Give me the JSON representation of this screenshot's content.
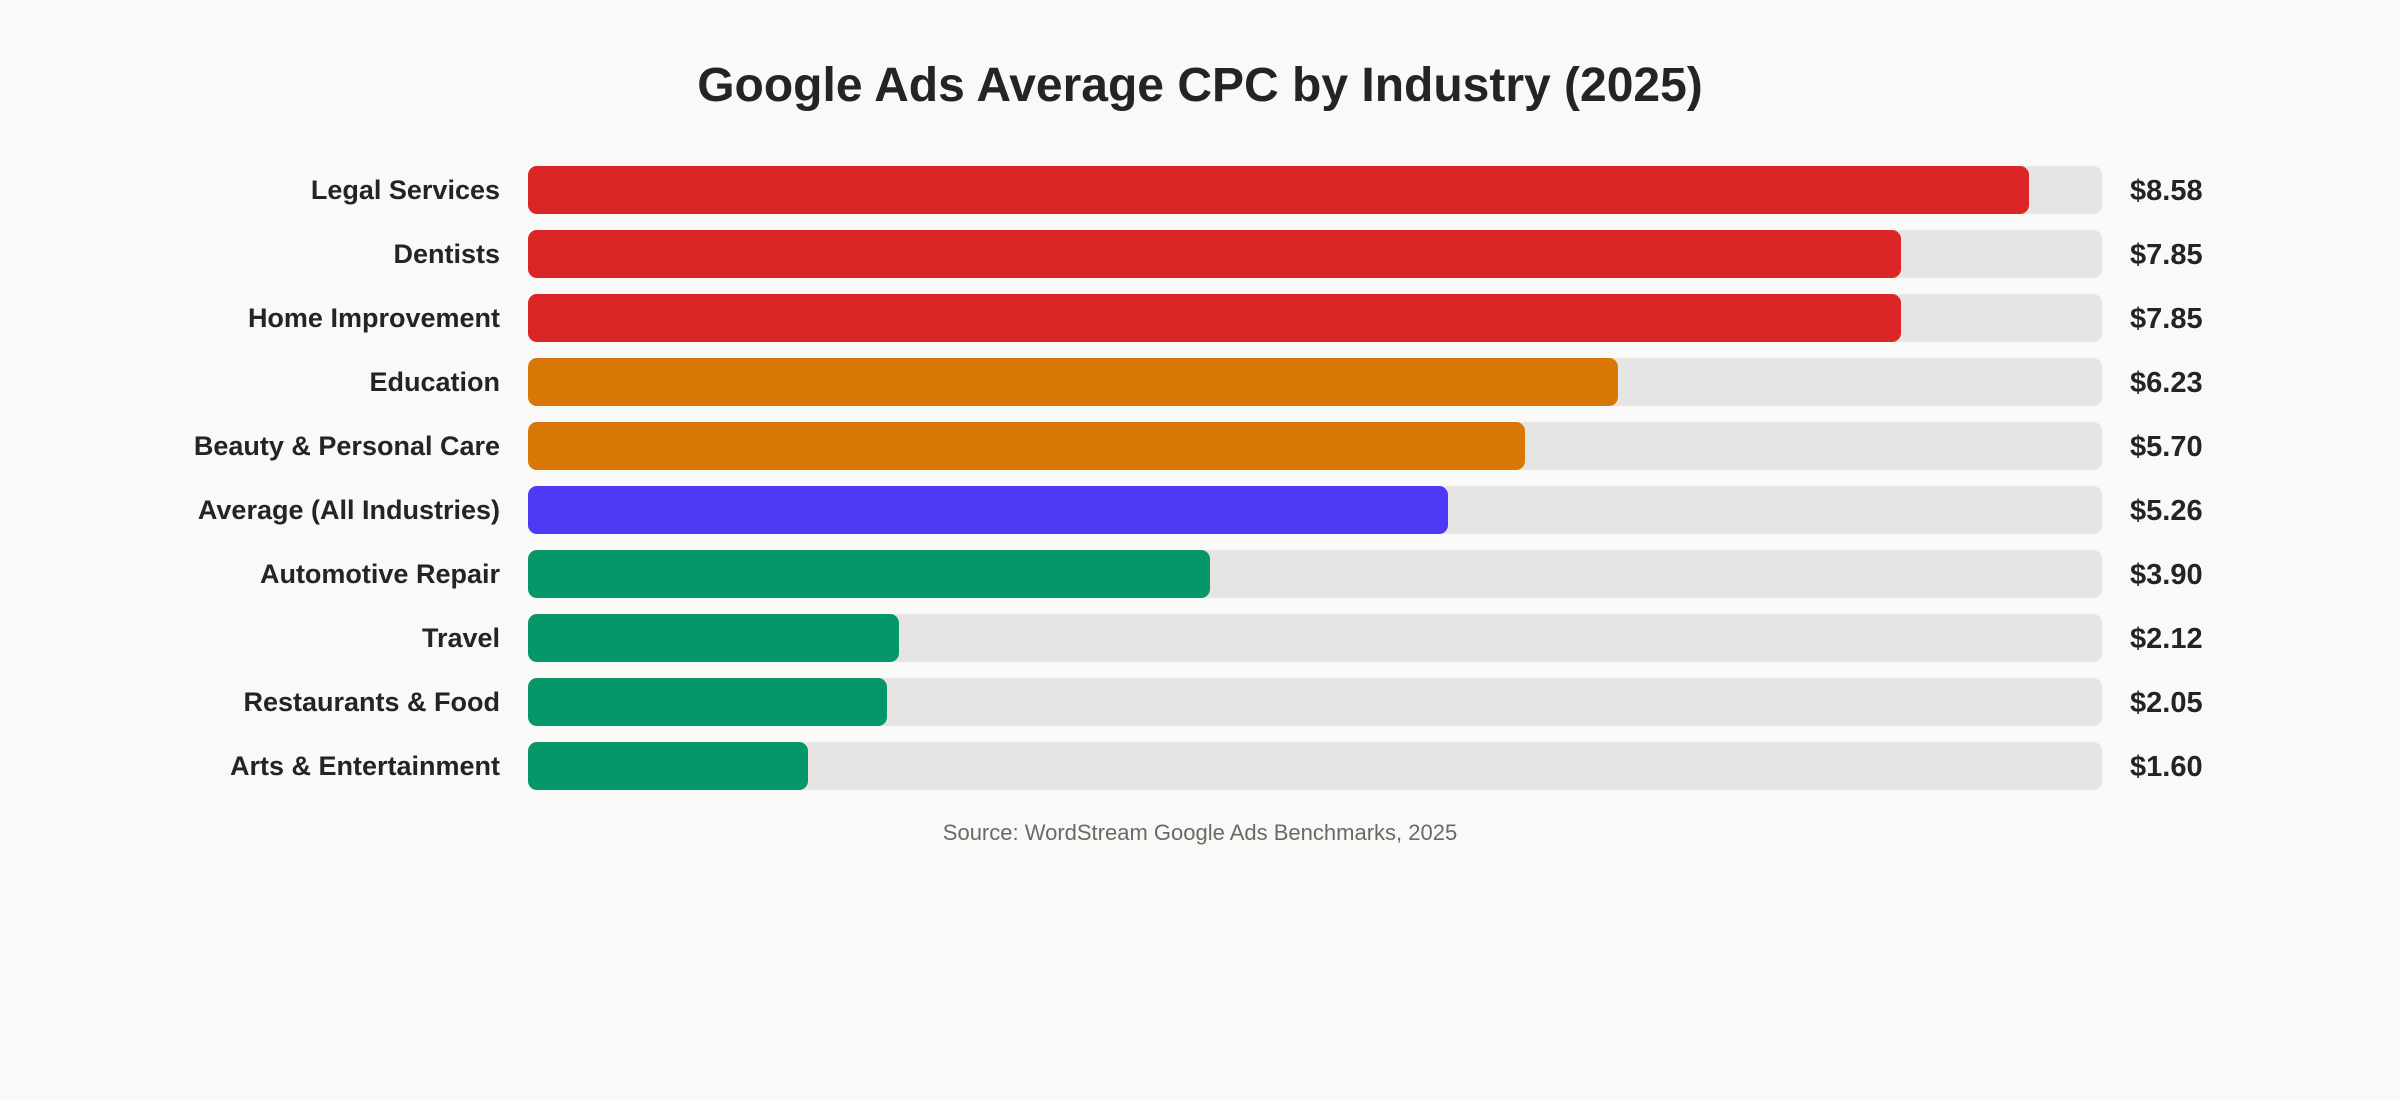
{
  "chart_data": {
    "type": "bar",
    "orientation": "horizontal",
    "title": "Google Ads Average CPC by Industry (2025)",
    "source": "Source: WordStream Google Ads Benchmarks, 2025",
    "xlim": [
      0,
      9
    ],
    "grid": false,
    "categories": [
      "Legal Services",
      "Dentists",
      "Home Improvement",
      "Education",
      "Beauty & Personal Care",
      "Average (All Industries)",
      "Automotive Repair",
      "Travel",
      "Restaurants & Food",
      "Arts & Entertainment"
    ],
    "values": [
      8.58,
      7.85,
      7.85,
      6.23,
      5.7,
      5.26,
      3.9,
      2.12,
      2.05,
      1.6
    ],
    "value_labels": [
      "$8.58",
      "$7.85",
      "$7.85",
      "$6.23",
      "$5.70",
      "$5.26",
      "$3.90",
      "$2.12",
      "$2.05",
      "$1.60"
    ],
    "colors": [
      "#dc2626",
      "#dc2626",
      "#dc2626",
      "#d97706",
      "#d97706",
      "#4f39f6",
      "#059669",
      "#059669",
      "#059669",
      "#059669"
    ],
    "track_color": "#e6e5e3"
  }
}
